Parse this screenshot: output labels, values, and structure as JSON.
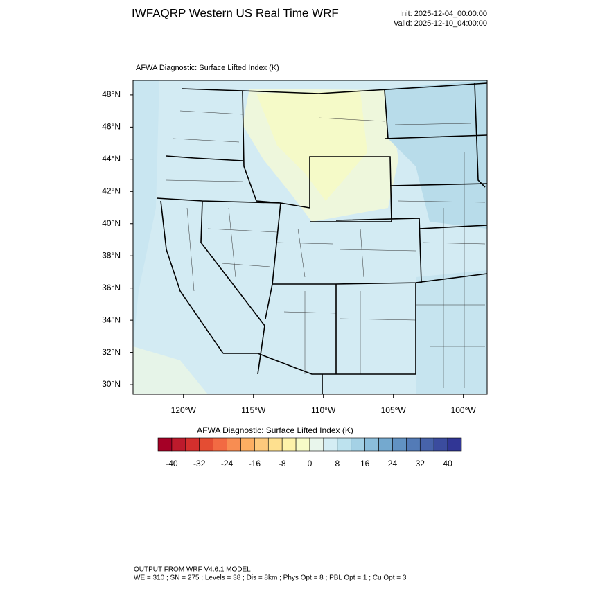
{
  "header": {
    "title": "IWFAQRP Western US Real Time WRF",
    "init": "Init: 2025-12-04_00:00:00",
    "valid": "Valid: 2025-12-10_04:00:00"
  },
  "map": {
    "subtitle": "AFWA Diagnostic: Surface Lifted Index   (K)",
    "xlim": [
      -123.6,
      -98.3
    ],
    "ylim": [
      29.4,
      48.9
    ],
    "xticks": [
      {
        "value": -120,
        "label": "120°W"
      },
      {
        "value": -115,
        "label": "115°W"
      },
      {
        "value": -110,
        "label": "110°W"
      },
      {
        "value": -105,
        "label": "105°W"
      },
      {
        "value": -100,
        "label": "100°W"
      }
    ],
    "yticks": [
      {
        "value": 30,
        "label": "30°N"
      },
      {
        "value": 32,
        "label": "32°N"
      },
      {
        "value": 34,
        "label": "34°N"
      },
      {
        "value": 36,
        "label": "36°N"
      },
      {
        "value": 38,
        "label": "38°N"
      },
      {
        "value": 40,
        "label": "40°N"
      },
      {
        "value": 42,
        "label": "42°N"
      },
      {
        "value": 44,
        "label": "44°N"
      },
      {
        "value": 46,
        "label": "46°N"
      },
      {
        "value": 48,
        "label": "48°N"
      }
    ]
  },
  "colorbar": {
    "title": "AFWA Diagnostic: Surface Lifted Index  (K)",
    "lim": [
      -44,
      44
    ],
    "ticks": [
      -40,
      -32,
      -24,
      -16,
      -8,
      0,
      8,
      16,
      24,
      32,
      40
    ],
    "colors": [
      "#a50026",
      "#bd1a2c",
      "#d42f2d",
      "#e44d33",
      "#f26a43",
      "#f88d52",
      "#fcae62",
      "#fdc97c",
      "#fee08f",
      "#fdf2a9",
      "#f7fbc8",
      "#e9f6ec",
      "#d4edf4",
      "#bde2ee",
      "#a4d1e5",
      "#8bbedb",
      "#74a9cf",
      "#6192c3",
      "#537bb7",
      "#4763aa",
      "#3b4c9e",
      "#313695"
    ]
  },
  "footer": {
    "line1": "OUTPUT FROM WRF V4.6.1 MODEL",
    "line2": "WE = 310 ; SN = 275 ; Levels = 38 ; Dis = 8km ; Phys Opt = 8 ; PBL Opt = 1 ; Cu Opt = 3"
  }
}
